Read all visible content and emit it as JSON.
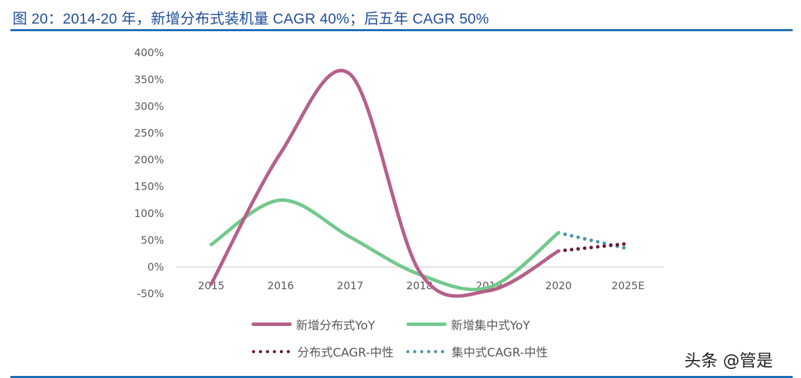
{
  "title": "图 20：2014-20 年，新增分布式装机量 CAGR 40%；后五年 CAGR 50%",
  "watermark": "头条 @管是",
  "colors": {
    "rule": "#1a6eb5",
    "title": "#1f4e99",
    "distributed_yoy": "#b5608a",
    "centralized_yoy": "#72c98d",
    "distributed_cagr": "#6b1a35",
    "centralized_cagr": "#4a96ad",
    "axis": "#d9d9d9",
    "tick_text": "#595959"
  },
  "legend": [
    {
      "label": "新增分布式YoY",
      "style": "solid",
      "color": "#b5608a"
    },
    {
      "label": "新增集中式YoY",
      "style": "solid",
      "color": "#72c98d"
    },
    {
      "label": "分布式CAGR-中性",
      "style": "dotted",
      "color": "#6b1a35"
    },
    {
      "label": "集中式CAGR-中性",
      "style": "dotted",
      "color": "#4a96ad"
    }
  ],
  "chart_data": {
    "type": "line",
    "title": "图 20：2014-20 年，新增分布式装机量 CAGR 40%；后五年 CAGR 50%",
    "xlabel": "",
    "ylabel": "",
    "categories": [
      "2015",
      "2016",
      "2017",
      "2018",
      "2019",
      "2020",
      "2025E"
    ],
    "yticks": [
      "400%",
      "350%",
      "300%",
      "250%",
      "200%",
      "150%",
      "100%",
      "50%",
      "0%",
      "-50%"
    ],
    "ylim": [
      -50,
      400
    ],
    "grid": false,
    "legend_position": "bottom",
    "series": [
      {
        "name": "新增分布式YoY",
        "style": "solid-smooth",
        "values": [
          -32,
          213,
          360,
          -9,
          -44,
          30,
          null
        ]
      },
      {
        "name": "新增集中式YoY",
        "style": "solid-smooth",
        "values": [
          42,
          125,
          56,
          -14,
          -38,
          64,
          null
        ]
      },
      {
        "name": "分布式CAGR-中性",
        "style": "dotted",
        "values": [
          null,
          null,
          null,
          null,
          null,
          30,
          43
        ]
      },
      {
        "name": "集中式CAGR-中性",
        "style": "dotted",
        "values": [
          null,
          null,
          null,
          null,
          null,
          64,
          36
        ]
      }
    ]
  }
}
